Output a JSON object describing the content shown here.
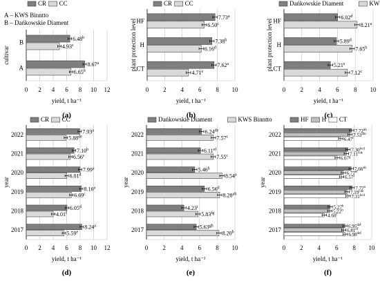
{
  "chart_data": [
    {
      "id": "a",
      "panel_label": "(a)",
      "type": "bar",
      "orientation": "horizontal",
      "categories": [
        "A",
        "B"
      ],
      "series": [
        {
          "name": "CR",
          "values": [
            8.67,
            6.48
          ],
          "letters": [
            "a",
            "b"
          ],
          "color": "#7f7f7f"
        },
        {
          "name": "CC",
          "values": [
            6.65,
            4.93
          ],
          "letters": [
            "b",
            "c"
          ],
          "color": "#d9d9d9"
        }
      ],
      "xlim": [
        0,
        12
      ],
      "xticks": [
        0,
        2,
        4,
        6,
        8,
        10,
        12
      ],
      "xlabel": "yield, t ha⁻¹",
      "ylabel": "cultivar",
      "legend": "top",
      "notes": [
        "A – KWS Binntto",
        "B – Dańkowskie Diament"
      ]
    },
    {
      "id": "b",
      "panel_label": "(b)",
      "type": "bar",
      "orientation": "horizontal",
      "categories": [
        "CT",
        "H",
        "HF"
      ],
      "series": [
        {
          "name": "CR",
          "values": [
            7.62,
            7.38,
            7.73
          ],
          "letters": [
            "a",
            "b",
            "a"
          ],
          "color": "#7f7f7f"
        },
        {
          "name": "CC",
          "values": [
            4.71,
            6.16,
            6.5
          ],
          "letters": [
            "e",
            "d",
            "c"
          ],
          "color": "#d9d9d9"
        }
      ],
      "xlim": [
        0,
        10
      ],
      "xticks": [
        0,
        2,
        4,
        6,
        8,
        10
      ],
      "xlabel": "yield, t ha⁻¹",
      "ylabel": "plant protection level",
      "legend": "top"
    },
    {
      "id": "c",
      "panel_label": "(c)",
      "type": "bar",
      "orientation": "horizontal",
      "categories": [
        "CT",
        "H",
        "HF"
      ],
      "series": [
        {
          "name": "Dańkowskie Diament",
          "values": [
            5.21,
            5.89,
            6.02
          ],
          "letters": [
            "e",
            "d",
            "d"
          ],
          "color": "#7f7f7f"
        },
        {
          "name": "KWS Binntto",
          "values": [
            7.12,
            7.65,
            8.21
          ],
          "letters": [
            "c",
            "b",
            "a"
          ],
          "color": "#d9d9d9"
        }
      ],
      "xlim": [
        0,
        10
      ],
      "xticks": [
        0,
        2,
        4,
        6,
        8,
        10
      ],
      "xlabel": "yield, t ha⁻¹",
      "ylabel": "plant protection level",
      "legend": "top"
    },
    {
      "id": "d",
      "panel_label": "(d)",
      "type": "bar",
      "orientation": "horizontal",
      "categories": [
        "2017",
        "2018",
        "2019",
        "2020",
        "2021",
        "2022"
      ],
      "series": [
        {
          "name": "CR",
          "values": [
            8.24,
            6.05,
            8.16,
            7.99,
            7.1,
            7.93
          ],
          "letters": [
            "a",
            "d",
            "a",
            "a",
            "b",
            "a"
          ],
          "color": "#7f7f7f"
        },
        {
          "name": "CC",
          "values": [
            5.59,
            4.01,
            6.69,
            6.01,
            6.56,
            5.88
          ],
          "letters": [
            "e",
            "f",
            "c",
            "d",
            "c",
            "de"
          ],
          "color": "#d9d9d9"
        }
      ],
      "xlim": [
        0,
        12
      ],
      "xticks": [
        0,
        2,
        4,
        6,
        8,
        10,
        12
      ],
      "xlabel": "yield, t ha⁻¹",
      "ylabel": "year",
      "legend": "top"
    },
    {
      "id": "e",
      "panel_label": "(e)",
      "type": "bar",
      "orientation": "horizontal",
      "categories": [
        "2017",
        "2018",
        "2019",
        "2020",
        "2021",
        "2022"
      ],
      "series": [
        {
          "name": "Dańkowskie Diament",
          "values": [
            5.63,
            4.23,
            6.56,
            5.46,
            6.11,
            6.24
          ],
          "letters": [
            "gh",
            "i",
            "d",
            "h",
            "ef",
            "de"
          ],
          "color": "#7f7f7f"
        },
        {
          "name": "KWS Binntto",
          "values": [
            8.2,
            5.83,
            8.28,
            8.54,
            7.55,
            7.57
          ],
          "letters": [
            "b",
            "fg",
            "ab",
            "a",
            "c",
            "c"
          ],
          "color": "#d9d9d9"
        }
      ],
      "xlim": [
        0,
        10
      ],
      "xticks": [
        0,
        2,
        4,
        6,
        8,
        10
      ],
      "xlabel": "yield, t ha⁻¹",
      "ylabel": "year",
      "legend": "top"
    },
    {
      "id": "f",
      "panel_label": "(f)",
      "type": "bar",
      "orientation": "horizontal",
      "categories": [
        "2017",
        "2018",
        "2019",
        "2020",
        "2021",
        "2022"
      ],
      "series": [
        {
          "name": "HF",
          "values": [
            6.95,
            5.27,
            7.77,
            7.66,
            7.3,
            7.72
          ],
          "letters": [
            "def",
            "h",
            "a",
            "ab",
            "bcd",
            "ab"
          ],
          "color": "#7f7f7f"
        },
        {
          "name": "H",
          "values": [
            6.81,
            5.22,
            7.19,
            6.77,
            7.11,
            7.53
          ],
          "letters": [
            "ef",
            "h",
            "cde",
            "ef",
            "cde",
            "abc"
          ],
          "color": "#bfbfbf"
        },
        {
          "name": "CT",
          "values": [
            6.98,
            4.6,
            7.31,
            6.57,
            6.07,
            6.47
          ],
          "letters": [
            "def",
            "i",
            "bcd",
            "f",
            "g",
            "f"
          ],
          "color": "#ffffff"
        }
      ],
      "xlim": [
        0,
        10
      ],
      "xticks": [
        0,
        2,
        4,
        6,
        8,
        10
      ],
      "xlabel": "yield, t ha⁻¹",
      "ylabel": "year",
      "legend": "top"
    }
  ]
}
